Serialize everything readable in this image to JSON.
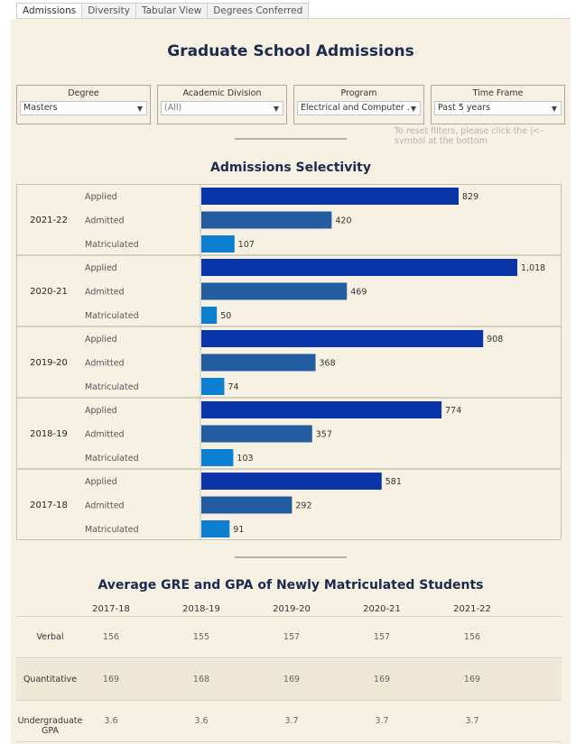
{
  "tabs": [
    {
      "label": "Admissions",
      "active": true
    },
    {
      "label": "Diversity",
      "active": false
    },
    {
      "label": "Tabular View",
      "active": false
    },
    {
      "label": "Degrees Conferred",
      "active": false
    }
  ],
  "title": "Graduate School Admissions",
  "filters": [
    {
      "label": "Degree",
      "value": "Masters"
    },
    {
      "label": "Academic Division",
      "value": "(All)"
    },
    {
      "label": "Program",
      "value": "Electrical and Computer ..."
    },
    {
      "label": "Time Frame",
      "value": "Past 5 years"
    }
  ],
  "reset_note": "To reset filters, please click the |<- symbol at the bottom",
  "selectivity": {
    "title": "Admissions Selectivity",
    "colors": {
      "Applied": "#0a35a8",
      "Admitted": "#235ca0",
      "Matriculated": "#0d7fd1"
    },
    "chart_data": {
      "type": "bar",
      "orientation": "horizontal",
      "categories": [
        "Applied",
        "Admitted",
        "Matriculated"
      ],
      "groups": [
        {
          "year": "2021-22",
          "values": [
            829,
            420,
            107
          ],
          "labels": [
            "829",
            "420",
            "107"
          ]
        },
        {
          "year": "2020-21",
          "values": [
            1018,
            469,
            50
          ],
          "labels": [
            "1,018",
            "469",
            "50"
          ]
        },
        {
          "year": "2019-20",
          "values": [
            908,
            368,
            74
          ],
          "labels": [
            "908",
            "368",
            "74"
          ]
        },
        {
          "year": "2018-19",
          "values": [
            774,
            357,
            103
          ],
          "labels": [
            "774",
            "357",
            "103"
          ]
        },
        {
          "year": "2017-18",
          "values": [
            581,
            292,
            91
          ],
          "labels": [
            "581",
            "292",
            "91"
          ]
        }
      ]
    }
  },
  "gre": {
    "title": "Average GRE and GPA of Newly Matriculated Students",
    "columns": [
      "2017-18",
      "2018-19",
      "2019-20",
      "2020-21",
      "2021-22"
    ],
    "rows": [
      {
        "label": "Verbal",
        "values": [
          "156",
          "155",
          "157",
          "157",
          "156"
        ]
      },
      {
        "label": "Quantitative",
        "values": [
          "169",
          "168",
          "169",
          "169",
          "169"
        ]
      },
      {
        "label": "Undergraduate GPA",
        "values": [
          "3.6",
          "3.6",
          "3.7",
          "3.7",
          "3.7"
        ]
      }
    ]
  }
}
